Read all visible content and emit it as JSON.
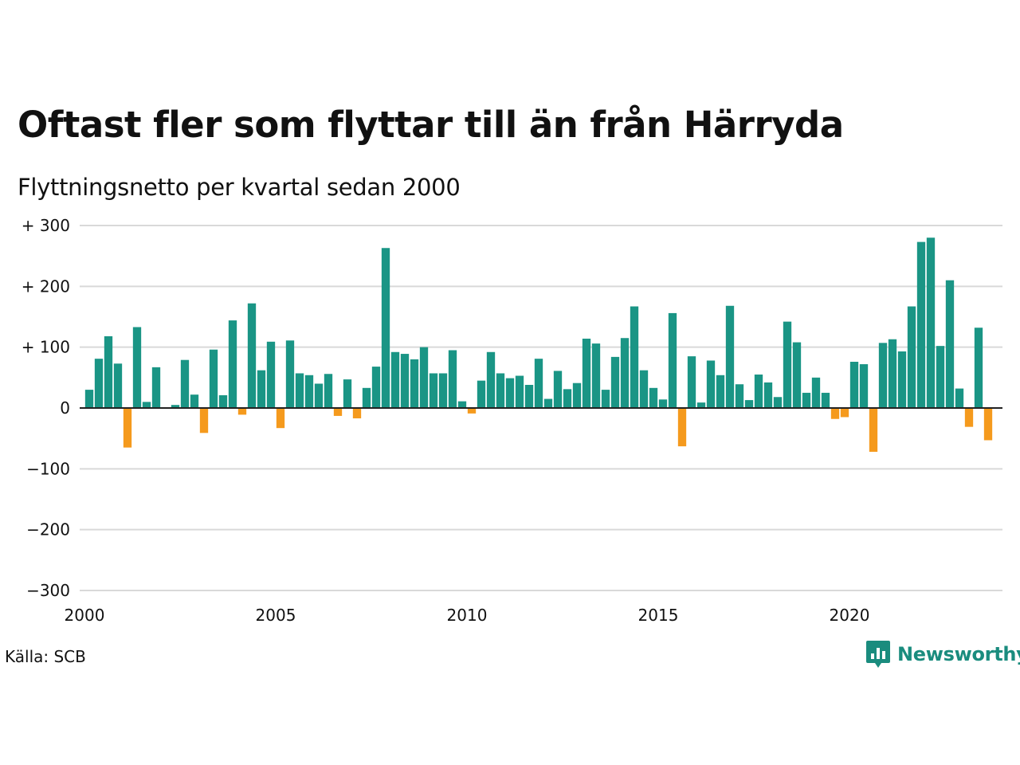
{
  "title": "Oftast fler som flyttar till än från Härryda",
  "subtitle": "Flyttningsnetto per kvartal sedan 2000",
  "source": "Källa: SCB",
  "logo": {
    "text": "Newsworthy",
    "icon": "newsworthy-chart-bubble-icon"
  },
  "colors": {
    "positive": "#1a9585",
    "negative": "#f59a1d",
    "grid": "#d9d9d9",
    "logo": "#1a8c7e"
  },
  "chart_data": {
    "type": "bar",
    "title": "Oftast fler som flyttar till än från Härryda",
    "subtitle": "Flyttningsnetto per kvartal sedan 2000",
    "xlabel": "",
    "ylabel": "",
    "ylim": [
      -300,
      300
    ],
    "yticks": [
      300,
      200,
      100,
      0,
      -100,
      -200,
      -300
    ],
    "ytick_labels": [
      "+ 300",
      "+ 200",
      "+ 100",
      "0",
      "−100",
      "−200",
      "−300"
    ],
    "xticks": [
      "2000",
      "2005",
      "2010",
      "2015",
      "2020"
    ],
    "grid": true,
    "categories": [
      "2000 K1",
      "2000 K2",
      "2000 K3",
      "2000 K4",
      "2001 K1",
      "2001 K2",
      "2001 K3",
      "2001 K4",
      "2002 K1",
      "2002 K2",
      "2002 K3",
      "2002 K4",
      "2003 K1",
      "2003 K2",
      "2003 K3",
      "2003 K4",
      "2004 K1",
      "2004 K2",
      "2004 K3",
      "2004 K4",
      "2005 K1",
      "2005 K2",
      "2005 K3",
      "2005 K4",
      "2006 K1",
      "2006 K2",
      "2006 K3",
      "2006 K4",
      "2007 K1",
      "2007 K2",
      "2007 K3",
      "2007 K4",
      "2008 K1",
      "2008 K2",
      "2008 K3",
      "2008 K4",
      "2009 K1",
      "2009 K2",
      "2009 K3",
      "2009 K4",
      "2010 K1",
      "2010 K2",
      "2010 K3",
      "2010 K4",
      "2011 K1",
      "2011 K2",
      "2011 K3",
      "2011 K4",
      "2012 K1",
      "2012 K2",
      "2012 K3",
      "2012 K4",
      "2013 K1",
      "2013 K2",
      "2013 K3",
      "2013 K4",
      "2014 K1",
      "2014 K2",
      "2014 K3",
      "2014 K4",
      "2015 K1",
      "2015 K2",
      "2015 K3",
      "2015 K4",
      "2016 K1",
      "2016 K2",
      "2016 K3",
      "2016 K4",
      "2017 K1",
      "2017 K2",
      "2017 K3",
      "2017 K4",
      "2018 K1",
      "2018 K2",
      "2018 K3",
      "2018 K4",
      "2019 K1",
      "2019 K2",
      "2019 K3",
      "2019 K4",
      "2020 K1",
      "2020 K2",
      "2020 K3",
      "2020 K4",
      "2021 K1",
      "2021 K2",
      "2021 K3",
      "2021 K4",
      "2022 K1",
      "2022 K2",
      "2022 K3",
      "2022 K4",
      "2023 K1",
      "2023 K2",
      "2023 K3",
      "2023 K4"
    ],
    "values": [
      30,
      81,
      118,
      73,
      -65,
      133,
      10,
      67,
      0,
      5,
      79,
      22,
      -41,
      96,
      21,
      144,
      -11,
      172,
      62,
      109,
      -33,
      111,
      57,
      54,
      40,
      56,
      -13,
      47,
      -17,
      33,
      68,
      263,
      92,
      89,
      80,
      100,
      57,
      57,
      95,
      11,
      -9,
      45,
      92,
      57,
      49,
      53,
      38,
      81,
      15,
      61,
      31,
      41,
      114,
      106,
      30,
      84,
      115,
      167,
      62,
      33,
      14,
      156,
      -63,
      85,
      9,
      78,
      54,
      168,
      39,
      13,
      55,
      42,
      18,
      142,
      108,
      25,
      50,
      25,
      -18,
      -15,
      76,
      72,
      -72,
      107,
      113,
      93,
      167,
      273,
      280,
      102,
      210,
      32,
      -31,
      132,
      -53,
      0
    ]
  }
}
